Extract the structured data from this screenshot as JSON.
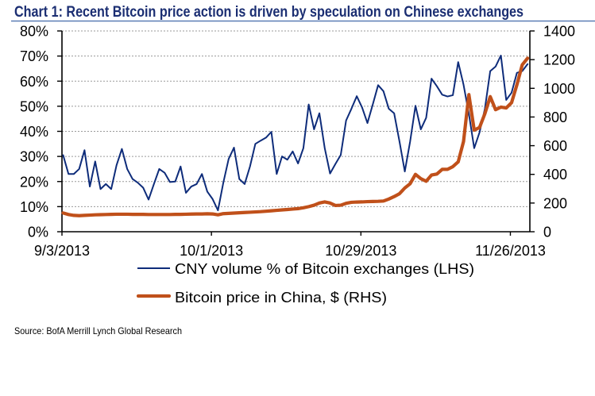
{
  "colors": {
    "title": "#1B2E72",
    "title_rule": "#5A7DB5"
  },
  "chart_data": {
    "type": "line",
    "title": "Chart 1: Recent Bitcoin price action is driven by speculation on Chinese exchanges",
    "xlabel": "",
    "x": [
      "9/3/2013",
      "9/4/2013",
      "9/5/2013",
      "9/6/2013",
      "9/7/2013",
      "9/8/2013",
      "9/9/2013",
      "9/10/2013",
      "9/11/2013",
      "9/12/2013",
      "9/13/2013",
      "9/14/2013",
      "9/15/2013",
      "9/16/2013",
      "9/17/2013",
      "9/18/2013",
      "9/19/2013",
      "9/20/2013",
      "9/21/2013",
      "9/22/2013",
      "9/23/2013",
      "9/24/2013",
      "9/25/2013",
      "9/26/2013",
      "9/27/2013",
      "9/28/2013",
      "9/29/2013",
      "9/30/2013",
      "10/1/2013",
      "10/2/2013",
      "10/3/2013",
      "10/4/2013",
      "10/5/2013",
      "10/6/2013",
      "10/7/2013",
      "10/8/2013",
      "10/9/2013",
      "10/10/2013",
      "10/11/2013",
      "10/12/2013",
      "10/13/2013",
      "10/14/2013",
      "10/15/2013",
      "10/16/2013",
      "10/17/2013",
      "10/18/2013",
      "10/19/2013",
      "10/20/2013",
      "10/21/2013",
      "10/22/2013",
      "10/23/2013",
      "10/24/2013",
      "10/25/2013",
      "10/26/2013",
      "10/27/2013",
      "10/28/2013",
      "10/29/2013",
      "10/30/2013",
      "10/31/2013",
      "11/1/2013",
      "11/2/2013",
      "11/3/2013",
      "11/4/2013",
      "11/5/2013",
      "11/6/2013",
      "11/7/2013",
      "11/8/2013",
      "11/9/2013",
      "11/10/2013",
      "11/11/2013",
      "11/12/2013",
      "11/13/2013",
      "11/14/2013",
      "11/15/2013",
      "11/16/2013",
      "11/17/2013",
      "11/18/2013",
      "11/19/2013",
      "11/20/2013",
      "11/21/2013",
      "11/22/2013",
      "11/23/2013",
      "11/24/2013",
      "11/25/2013",
      "11/26/2013",
      "11/27/2013",
      "11/28/2013",
      "11/29/2013"
    ],
    "x_ticks": [
      "9/3/2013",
      "10/1/2013",
      "10/29/2013",
      "11/26/2013"
    ],
    "y_left": {
      "label": "CNY volume %",
      "range": [
        0,
        80
      ],
      "tick_values": [
        0,
        10,
        20,
        30,
        40,
        50,
        60,
        70,
        80
      ],
      "tick_labels": [
        "0%",
        "10%",
        "20%",
        "30%",
        "40%",
        "50%",
        "60%",
        "70%",
        "80%"
      ]
    },
    "y_right": {
      "label": "Bitcoin price, $",
      "range": [
        0,
        1400
      ],
      "tick_values": [
        0,
        200,
        400,
        600,
        800,
        1000,
        1200,
        1400
      ],
      "tick_labels": [
        "0",
        "200",
        "400",
        "600",
        "800",
        "1000",
        "1200",
        "1400"
      ]
    },
    "grid": true,
    "legend_position": "bottom",
    "series": [
      {
        "name": "CNY volume % of Bitcoin exchanges (LHS)",
        "axis": "left",
        "color": "#0E2C7A",
        "values": [
          30.5,
          23,
          23,
          25,
          32.5,
          18,
          28,
          17,
          19,
          17,
          26.5,
          33,
          25,
          21,
          19.5,
          17.5,
          12.8,
          19,
          25,
          23.5,
          19.8,
          20,
          26,
          15.5,
          18,
          19,
          23,
          16,
          13,
          8.5,
          19.5,
          29,
          33.5,
          21,
          19,
          26,
          35,
          36.3,
          37.5,
          39.8,
          23,
          30,
          28.7,
          32,
          27.2,
          33.3,
          50.7,
          40.8,
          47.2,
          33.3,
          23.2,
          27,
          30.6,
          44.3,
          49,
          54,
          49.5,
          43.3,
          50.7,
          58.4,
          56,
          49,
          47.2,
          36,
          24,
          36,
          50.2,
          40.8,
          45.4,
          61,
          58,
          54.6,
          53.9,
          54.4,
          67.6,
          58.6,
          47,
          33.3,
          39.6,
          49,
          64,
          65.8,
          70.2,
          52.5,
          55.4,
          63.3,
          64,
          66.8
        ]
      },
      {
        "name": "Bitcoin price in China, $ (RHS)",
        "axis": "right",
        "color": "#C0501A",
        "values": [
          131,
          120,
          114,
          112,
          114,
          116,
          118,
          119,
          120,
          121,
          122,
          122,
          122,
          121,
          121,
          121,
          120,
          120,
          120,
          120,
          120,
          121,
          121,
          122,
          123,
          124,
          124,
          125,
          124,
          118,
          126,
          128,
          130,
          132,
          134,
          136,
          138,
          140,
          143,
          146,
          149,
          152,
          155,
          158,
          161,
          167,
          175,
          185,
          200,
          208,
          200,
          183,
          185,
          198,
          205,
          207,
          208,
          210,
          211,
          212,
          214,
          228,
          245,
          265,
          305,
          335,
          400,
          370,
          352,
          395,
          402,
          435,
          435,
          454,
          487,
          629,
          956,
          708,
          727,
          823,
          942,
          851,
          869,
          863,
          900,
          1025,
          1164,
          1210
        ]
      }
    ],
    "source": "Source: BofA Merrill Lynch Global Research"
  }
}
